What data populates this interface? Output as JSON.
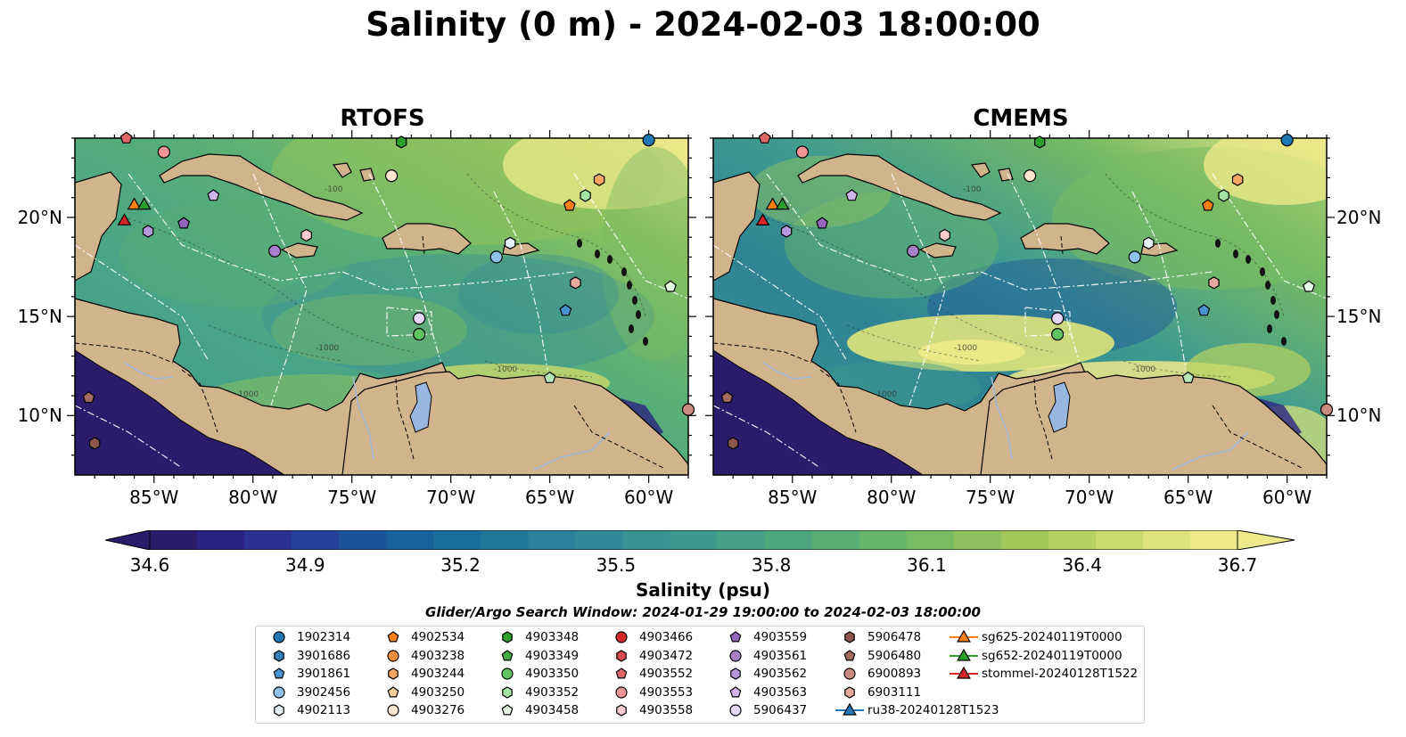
{
  "title": "Salinity (0 m) - 2024-02-03 18:00:00",
  "panels": [
    {
      "id": "rtofs",
      "title": "RTOFS",
      "style": "rtofs"
    },
    {
      "id": "cmems",
      "title": "CMEMS",
      "style": "cmems"
    }
  ],
  "axes": {
    "lon_ticks": [
      "85°W",
      "80°W",
      "75°W",
      "70°W",
      "65°W",
      "60°W"
    ],
    "lat_ticks": [
      "20°N",
      "15°N",
      "10°N"
    ]
  },
  "colorbar": {
    "label": "Salinity (psu)",
    "ticks": [
      "34.6",
      "34.9",
      "35.2",
      "35.5",
      "35.8",
      "36.1",
      "36.4",
      "36.7"
    ],
    "colors": [
      "#2a1b6b",
      "#2b2381",
      "#2a3191",
      "#24429a",
      "#1c549c",
      "#17629c",
      "#1a6e9b",
      "#22789a",
      "#2b829a",
      "#33899a",
      "#3a9195",
      "#3f998f",
      "#45a087",
      "#4da77e",
      "#58ae74",
      "#67b46b",
      "#79bb63",
      "#8dc15d",
      "#a1c75b",
      "#b6d15f",
      "#cbdb6b",
      "#dee47b",
      "#eee98a"
    ]
  },
  "search_window": "Glider/Argo Search Window: 2024-01-29 19:00:00 to 2024-02-03 18:00:00",
  "legend": {
    "items": [
      {
        "label": "1902314",
        "marker": "circle",
        "color": "#1f77b4"
      },
      {
        "label": "3901686",
        "marker": "hexagon",
        "color": "#2f7fb8"
      },
      {
        "label": "3901861",
        "marker": "pentagon",
        "color": "#4a92cf"
      },
      {
        "label": "3902456",
        "marker": "circle",
        "color": "#8ec2ea"
      },
      {
        "label": "4902113",
        "marker": "hexagon",
        "color": "#e4f1fb"
      },
      {
        "label": "4902534",
        "marker": "pentagon",
        "color": "#ff7f0e"
      },
      {
        "label": "4903238",
        "marker": "circle",
        "color": "#f78d3a"
      },
      {
        "label": "4903244",
        "marker": "hexagon",
        "color": "#f8a660"
      },
      {
        "label": "4903250",
        "marker": "pentagon",
        "color": "#fbc99b"
      },
      {
        "label": "4903276",
        "marker": "circle",
        "color": "#fde6cf"
      },
      {
        "label": "4903348",
        "marker": "hexagon",
        "color": "#2ca02c"
      },
      {
        "label": "4903349",
        "marker": "pentagon",
        "color": "#43ac43"
      },
      {
        "label": "4903350",
        "marker": "circle",
        "color": "#5fc35f"
      },
      {
        "label": "4903352",
        "marker": "hexagon",
        "color": "#a3e3a3"
      },
      {
        "label": "4903458",
        "marker": "pentagon",
        "color": "#e3f9e3"
      },
      {
        "label": "4903466",
        "marker": "circle",
        "color": "#d62728"
      },
      {
        "label": "4903472",
        "marker": "hexagon",
        "color": "#db4a4a"
      },
      {
        "label": "4903552",
        "marker": "pentagon",
        "color": "#e06767"
      },
      {
        "label": "4903553",
        "marker": "circle",
        "color": "#f09595"
      },
      {
        "label": "4903558",
        "marker": "hexagon",
        "color": "#f9cccc"
      },
      {
        "label": "4903559",
        "marker": "pentagon",
        "color": "#9467bd"
      },
      {
        "label": "4903561",
        "marker": "circle",
        "color": "#a77fcb"
      },
      {
        "label": "4903562",
        "marker": "hexagon",
        "color": "#b797dc"
      },
      {
        "label": "4903563",
        "marker": "pentagon",
        "color": "#d0b6ec"
      },
      {
        "label": "5906437",
        "marker": "circle",
        "color": "#e6d8fb"
      },
      {
        "label": "5906478",
        "marker": "hexagon",
        "color": "#8c564b"
      },
      {
        "label": "5906480",
        "marker": "pentagon",
        "color": "#a36c5f"
      },
      {
        "label": "6900893",
        "marker": "circle",
        "color": "#c98b7e"
      },
      {
        "label": "6903111",
        "marker": "hexagon",
        "color": "#e7aaa0"
      },
      {
        "label": "ru38-20240128T1523",
        "marker": "triangle-line",
        "color": "#1f77b4"
      },
      {
        "label": "sg625-20240119T0000",
        "marker": "triangle-line",
        "color": "#ff7f0e"
      },
      {
        "label": "sg652-20240119T0000",
        "marker": "triangle-line",
        "color": "#2ca02c"
      },
      {
        "label": "stommel-20240128T1522",
        "marker": "triangle-line",
        "color": "#d62728"
      }
    ]
  },
  "observations": [
    {
      "id": "1902314",
      "marker": "circle",
      "color": "#1f77b4",
      "lon": -60.0,
      "lat": 23.9
    },
    {
      "id": "3901861",
      "marker": "pentagon",
      "color": "#4a92cf",
      "lon": -64.2,
      "lat": 15.3
    },
    {
      "id": "3902456",
      "marker": "circle",
      "color": "#8ec2ea",
      "lon": -67.7,
      "lat": 18.0
    },
    {
      "id": "4902113",
      "marker": "hexagon",
      "color": "#e4f1fb",
      "lon": -67.0,
      "lat": 18.7
    },
    {
      "id": "4902534",
      "marker": "pentagon",
      "color": "#ff7f0e",
      "lon": -64.0,
      "lat": 20.6
    },
    {
      "id": "4903244",
      "marker": "hexagon",
      "color": "#f8a660",
      "lon": -62.5,
      "lat": 21.9
    },
    {
      "id": "4903276",
      "marker": "circle",
      "color": "#fde6cf",
      "lon": -73.0,
      "lat": 22.1
    },
    {
      "id": "4903348",
      "marker": "hexagon",
      "color": "#2ca02c",
      "lon": -72.5,
      "lat": 23.8
    },
    {
      "id": "4903350",
      "marker": "circle",
      "color": "#5fc35f",
      "lon": -71.6,
      "lat": 14.1
    },
    {
      "id": "4903352",
      "marker": "hexagon",
      "color": "#a3e3a3",
      "lon": -63.2,
      "lat": 21.1
    },
    {
      "id": "4903458",
      "marker": "pentagon",
      "color": "#e3f9e3",
      "lon": -58.9,
      "lat": 16.5
    },
    {
      "id": "4903458b",
      "marker": "pentagon",
      "color": "#b5e8b5",
      "lon": -65.0,
      "lat": 11.9
    },
    {
      "id": "4903552",
      "marker": "pentagon",
      "color": "#e06767",
      "lon": -86.4,
      "lat": 24.0
    },
    {
      "id": "4903553",
      "marker": "circle",
      "color": "#f09595",
      "lon": -84.5,
      "lat": 23.3
    },
    {
      "id": "4903558",
      "marker": "hexagon",
      "color": "#f9cccc",
      "lon": -77.3,
      "lat": 19.1
    },
    {
      "id": "4903559",
      "marker": "pentagon",
      "color": "#9467bd",
      "lon": -83.5,
      "lat": 19.7
    },
    {
      "id": "4903561",
      "marker": "circle",
      "color": "#a77fcb",
      "lon": -78.9,
      "lat": 18.3
    },
    {
      "id": "4903562",
      "marker": "hexagon",
      "color": "#b797dc",
      "lon": -85.3,
      "lat": 19.3
    },
    {
      "id": "4903563",
      "marker": "pentagon",
      "color": "#d0b6ec",
      "lon": -82.0,
      "lat": 21.1
    },
    {
      "id": "5906437",
      "marker": "circle",
      "color": "#e6d8fb",
      "lon": -71.6,
      "lat": 14.9
    },
    {
      "id": "5906478",
      "marker": "hexagon",
      "color": "#8c564b",
      "lon": -88.0,
      "lat": 8.6
    },
    {
      "id": "5906480",
      "marker": "pentagon",
      "color": "#a36c5f",
      "lon": -88.3,
      "lat": 10.9
    },
    {
      "id": "6900893",
      "marker": "circle",
      "color": "#c98b7e",
      "lon": -58.0,
      "lat": 10.3
    },
    {
      "id": "6903111",
      "marker": "hexagon",
      "color": "#e7aaa0",
      "lon": -63.7,
      "lat": 16.7
    },
    {
      "id": "sg625",
      "marker": "triangle",
      "color": "#ff7f0e",
      "lon": -86.0,
      "lat": 20.6
    },
    {
      "id": "sg652",
      "marker": "triangle",
      "color": "#2ca02c",
      "lon": -85.5,
      "lat": 20.6
    },
    {
      "id": "stommel",
      "marker": "triangle",
      "color": "#d62728",
      "lon": -86.5,
      "lat": 19.8
    }
  ]
}
